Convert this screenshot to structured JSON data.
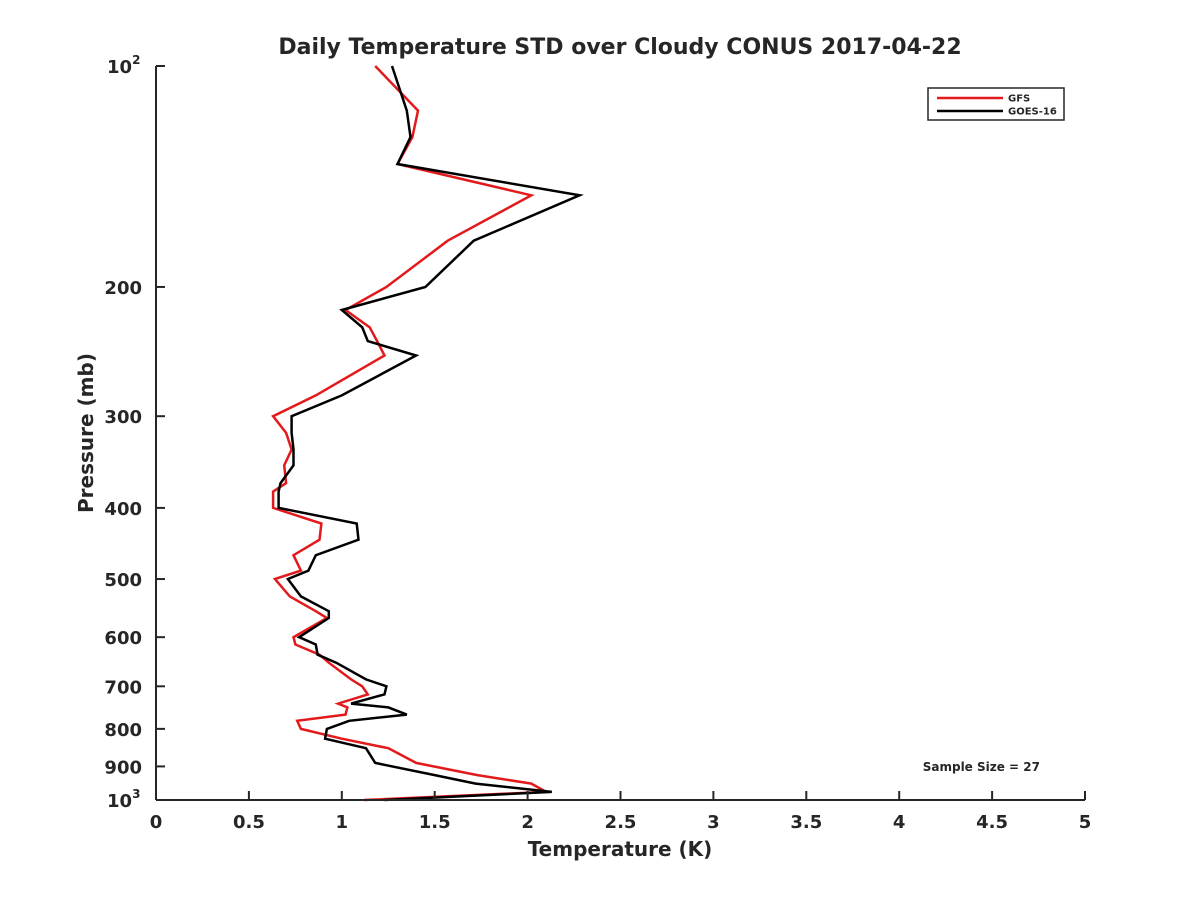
{
  "chart_data": {
    "type": "line",
    "title": "Daily Temperature STD over Cloudy CONUS 2017-04-22",
    "xlabel": "Temperature (K)",
    "ylabel": "Pressure (mb)",
    "xlim": [
      0,
      5
    ],
    "ylim": [
      100,
      1000
    ],
    "yscale": "log",
    "y_reversed": true,
    "grid": false,
    "legend_position": "top-right",
    "x_ticks": [
      {
        "value": 0,
        "label": "0"
      },
      {
        "value": 0.5,
        "label": "0.5"
      },
      {
        "value": 1,
        "label": "1"
      },
      {
        "value": 1.5,
        "label": "1.5"
      },
      {
        "value": 2,
        "label": "2"
      },
      {
        "value": 2.5,
        "label": "2.5"
      },
      {
        "value": 3,
        "label": "3"
      },
      {
        "value": 3.5,
        "label": "3.5"
      },
      {
        "value": 4,
        "label": "4"
      },
      {
        "value": 4.5,
        "label": "4.5"
      },
      {
        "value": 5,
        "label": "5"
      }
    ],
    "y_ticks": [
      {
        "value": 100,
        "label": "10",
        "sup": "2"
      },
      {
        "value": 200,
        "label": "200"
      },
      {
        "value": 300,
        "label": "300"
      },
      {
        "value": 400,
        "label": "400"
      },
      {
        "value": 500,
        "label": "500"
      },
      {
        "value": 600,
        "label": "600"
      },
      {
        "value": 700,
        "label": "700"
      },
      {
        "value": 800,
        "label": "800"
      },
      {
        "value": 900,
        "label": "900"
      },
      {
        "value": 1000,
        "label": "10",
        "sup": "3"
      }
    ],
    "annotation": "Sample Size = 27",
    "series": [
      {
        "name": "GFS",
        "color": "#e31a1c",
        "points": [
          [
            1.18,
            100
          ],
          [
            1.41,
            115
          ],
          [
            1.38,
            125
          ],
          [
            1.3,
            136
          ],
          [
            2.02,
            150
          ],
          [
            1.57,
            173
          ],
          [
            1.24,
            200
          ],
          [
            1.02,
            215
          ],
          [
            1.15,
            227
          ],
          [
            1.19,
            237
          ],
          [
            1.23,
            248
          ],
          [
            0.86,
            281
          ],
          [
            0.63,
            300
          ],
          [
            0.7,
            316
          ],
          [
            0.73,
            333
          ],
          [
            0.69,
            350
          ],
          [
            0.7,
            370
          ],
          [
            0.63,
            380
          ],
          [
            0.63,
            400
          ],
          [
            0.89,
            420
          ],
          [
            0.88,
            442
          ],
          [
            0.74,
            464
          ],
          [
            0.78,
            487
          ],
          [
            0.64,
            500
          ],
          [
            0.72,
            528
          ],
          [
            0.86,
            553
          ],
          [
            0.92,
            565
          ],
          [
            0.74,
            600
          ],
          [
            0.75,
            614
          ],
          [
            0.88,
            634
          ],
          [
            0.93,
            650
          ],
          [
            1.05,
            685
          ],
          [
            1.11,
            700
          ],
          [
            1.14,
            718
          ],
          [
            0.98,
            739
          ],
          [
            1.03,
            748
          ],
          [
            1.02,
            765
          ],
          [
            0.76,
            780
          ],
          [
            0.78,
            800
          ],
          [
            1.0,
            825
          ],
          [
            1.25,
            850
          ],
          [
            1.4,
            890
          ],
          [
            1.73,
            925
          ],
          [
            2.02,
            950
          ],
          [
            2.1,
            975
          ],
          [
            1.12,
            1000
          ]
        ]
      },
      {
        "name": "GOES-16",
        "color": "#000000",
        "points": [
          [
            1.27,
            100
          ],
          [
            1.35,
            115
          ],
          [
            1.37,
            125
          ],
          [
            1.3,
            136
          ],
          [
            2.28,
            150
          ],
          [
            1.71,
            173
          ],
          [
            1.45,
            200
          ],
          [
            1.0,
            215
          ],
          [
            1.11,
            227
          ],
          [
            1.14,
            237
          ],
          [
            1.4,
            248
          ],
          [
            1.0,
            281
          ],
          [
            0.73,
            300
          ],
          [
            0.73,
            316
          ],
          [
            0.74,
            333
          ],
          [
            0.74,
            350
          ],
          [
            0.67,
            370
          ],
          [
            0.66,
            380
          ],
          [
            0.66,
            400
          ],
          [
            1.08,
            420
          ],
          [
            1.09,
            442
          ],
          [
            0.86,
            464
          ],
          [
            0.82,
            487
          ],
          [
            0.71,
            500
          ],
          [
            0.78,
            528
          ],
          [
            0.93,
            553
          ],
          [
            0.93,
            565
          ],
          [
            0.77,
            600
          ],
          [
            0.86,
            614
          ],
          [
            0.87,
            634
          ],
          [
            0.97,
            650
          ],
          [
            1.13,
            685
          ],
          [
            1.24,
            700
          ],
          [
            1.23,
            718
          ],
          [
            1.05,
            739
          ],
          [
            1.25,
            748
          ],
          [
            1.35,
            765
          ],
          [
            1.04,
            780
          ],
          [
            0.92,
            800
          ],
          [
            0.91,
            825
          ],
          [
            1.13,
            850
          ],
          [
            1.18,
            890
          ],
          [
            1.5,
            925
          ],
          [
            1.72,
            950
          ],
          [
            2.13,
            975
          ],
          [
            1.23,
            1000
          ]
        ]
      }
    ]
  }
}
